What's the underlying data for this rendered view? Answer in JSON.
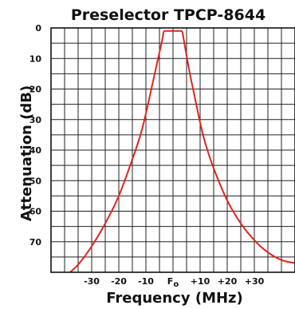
{
  "chart_data": {
    "type": "line",
    "title": "Preselector TPCP-8644",
    "xlabel": "Frequency (MHz)",
    "ylabel": "Attenuation (dB)",
    "xlim": [
      -45,
      45
    ],
    "ylim": [
      0,
      80
    ],
    "y_inverted": true,
    "grid": true,
    "x_ticks": [
      {
        "value": -30,
        "label": "-30"
      },
      {
        "value": -20,
        "label": "-20"
      },
      {
        "value": -10,
        "label": "-10"
      },
      {
        "value": 0,
        "label": "F",
        "sub": "o"
      },
      {
        "value": 10,
        "label": "+10"
      },
      {
        "value": 20,
        "label": "+20"
      },
      {
        "value": 30,
        "label": "+30"
      }
    ],
    "y_ticks": [
      {
        "value": 0,
        "label": "0"
      },
      {
        "value": 10,
        "label": "10"
      },
      {
        "value": 20,
        "label": "20"
      },
      {
        "value": 30,
        "label": "30"
      },
      {
        "value": 40,
        "label": "40"
      },
      {
        "value": 50,
        "label": "50"
      },
      {
        "value": 60,
        "label": "60"
      },
      {
        "value": 70,
        "label": "70"
      }
    ],
    "series": [
      {
        "color": "#e0241b",
        "x": [
          -38,
          -35,
          -30,
          -25,
          -20,
          -15,
          -12,
          -10,
          -8,
          -6,
          -4,
          -3.5,
          -3,
          -2,
          2,
          3,
          3.5,
          4,
          6,
          8,
          10,
          12,
          15,
          20,
          25,
          30,
          35,
          40,
          45
        ],
        "y": [
          80,
          77.5,
          71.5,
          64,
          55,
          43,
          35,
          28,
          20,
          12,
          4,
          1.5,
          1,
          1,
          1,
          1,
          1.5,
          4,
          14,
          22.5,
          31,
          38,
          46,
          56.5,
          64,
          69.5,
          73.5,
          76,
          77
        ]
      }
    ]
  }
}
